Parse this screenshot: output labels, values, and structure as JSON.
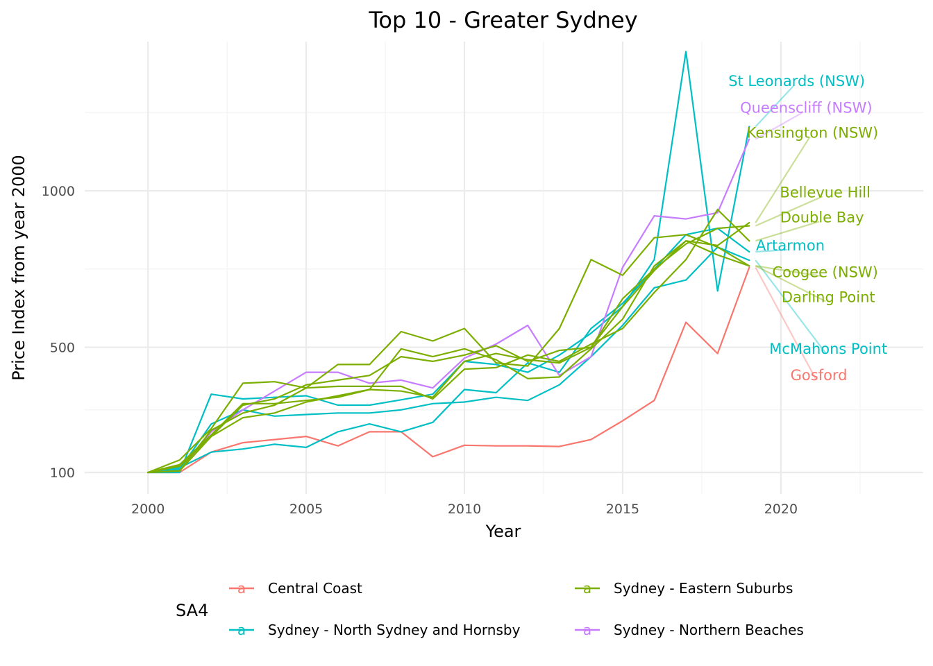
{
  "chart_data": {
    "type": "line",
    "title": "Top 10 - Greater Sydney",
    "xlabel": "Year",
    "ylabel": "Price Index from year 2000",
    "xlim": [
      1998,
      2024.5
    ],
    "ylim": [
      100,
      1460
    ],
    "x_ticks": [
      2000,
      2005,
      2010,
      2015,
      2020
    ],
    "y_ticks": [
      100,
      500,
      1000
    ],
    "grid": true,
    "legend": {
      "title": "SA4",
      "position": "bottom",
      "entries": [
        {
          "name": "Central Coast",
          "color": "#F8766D"
        },
        {
          "name": "Sydney - Eastern Suburbs",
          "color": "#7CAE00"
        },
        {
          "name": "Sydney - North Sydney and Hornsby",
          "color": "#00BFC4"
        },
        {
          "name": "Sydney - Northern Beaches",
          "color": "#C77CFF"
        }
      ],
      "key_glyph": "a"
    },
    "x": [
      2000,
      2001,
      2002,
      2003,
      2004,
      2005,
      2006,
      2007,
      2008,
      2009,
      2010,
      2011,
      2012,
      2013,
      2014,
      2015,
      2016,
      2017,
      2018,
      2019
    ],
    "series": [
      {
        "name": "Gosford",
        "group": "Central Coast",
        "color": "#F8766D",
        "values": [
          100,
          100,
          165,
          195,
          205,
          215,
          185,
          230,
          230,
          150,
          187,
          185,
          185,
          183,
          205,
          265,
          330,
          580,
          480,
          755
        ],
        "label_x": 2021.2,
        "label_y": 410
      },
      {
        "name": "St Leonards (NSW)",
        "group": "Sydney - North Sydney and Hornsby",
        "color": "#00BFC4",
        "values": [
          100,
          100,
          350,
          335,
          340,
          345,
          315,
          315,
          332,
          350,
          455,
          445,
          420,
          475,
          545,
          630,
          780,
          1445,
          680,
          1205
        ],
        "label_x": 2020.5,
        "label_y": 1350
      },
      {
        "name": "Artarmon",
        "group": "Sydney - North Sydney and Hornsby",
        "color": "#00BFC4",
        "values": [
          100,
          115,
          165,
          175,
          190,
          180,
          230,
          255,
          230,
          260,
          365,
          355,
          450,
          420,
          560,
          640,
          750,
          860,
          880,
          805
        ],
        "label_x": 2020.3,
        "label_y": 825
      },
      {
        "name": "McMahons Point",
        "group": "Sydney - North Sydney and Hornsby",
        "color": "#00BFC4",
        "values": [
          100,
          110,
          255,
          300,
          280,
          285,
          290,
          290,
          300,
          320,
          325,
          340,
          330,
          380,
          470,
          570,
          690,
          715,
          820,
          778
        ],
        "label_x": 2021.5,
        "label_y": 495
      },
      {
        "name": "Queenscliff (NSW)",
        "group": "Sydney - Northern Beaches",
        "color": "#C77CFF",
        "values": [
          100,
          105,
          230,
          300,
          360,
          420,
          420,
          385,
          395,
          370,
          465,
          510,
          570,
          410,
          470,
          755,
          920,
          910,
          930,
          1165
        ],
        "label_x": 2020.8,
        "label_y": 1265
      },
      {
        "name": "Kensington (NSW)",
        "group": "Sydney - Eastern Suburbs",
        "color": "#7CAE00",
        "values": [
          100,
          120,
          215,
          315,
          335,
          380,
          395,
          410,
          470,
          455,
          475,
          505,
          455,
          490,
          500,
          630,
          745,
          840,
          825,
          898
        ],
        "label_x": 2021.0,
        "label_y": 1185
      },
      {
        "name": "Bellevue Hill",
        "group": "Sydney - Eastern Suburbs",
        "color": "#7CAE00",
        "values": [
          100,
          125,
          220,
          320,
          320,
          330,
          340,
          365,
          360,
          340,
          455,
          480,
          460,
          450,
          500,
          655,
          750,
          830,
          880,
          888
        ],
        "label_x": 2021.4,
        "label_y": 995
      },
      {
        "name": "Double Bay",
        "group": "Sydney - Eastern Suburbs",
        "color": "#7CAE00",
        "values": [
          100,
          140,
          240,
          385,
          390,
          370,
          375,
          375,
          375,
          335,
          430,
          435,
          475,
          455,
          510,
          560,
          675,
          780,
          940,
          840
        ],
        "label_x": 2021.3,
        "label_y": 915
      },
      {
        "name": "Coogee (NSW)",
        "group": "Sydney - Eastern Suburbs",
        "color": "#7CAE00",
        "values": [
          100,
          105,
          215,
          275,
          290,
          325,
          345,
          365,
          495,
          470,
          495,
          460,
          400,
          405,
          495,
          590,
          760,
          840,
          795,
          760
        ],
        "label_x": 2021.4,
        "label_y": 740
      },
      {
        "name": "Darling Point",
        "group": "Sydney - Eastern Suburbs",
        "color": "#7CAE00",
        "values": [
          100,
          105,
          235,
          290,
          315,
          370,
          445,
          445,
          550,
          520,
          560,
          450,
          440,
          560,
          780,
          730,
          850,
          860,
          820,
          760
        ],
        "label_x": 2021.5,
        "label_y": 660
      }
    ]
  }
}
